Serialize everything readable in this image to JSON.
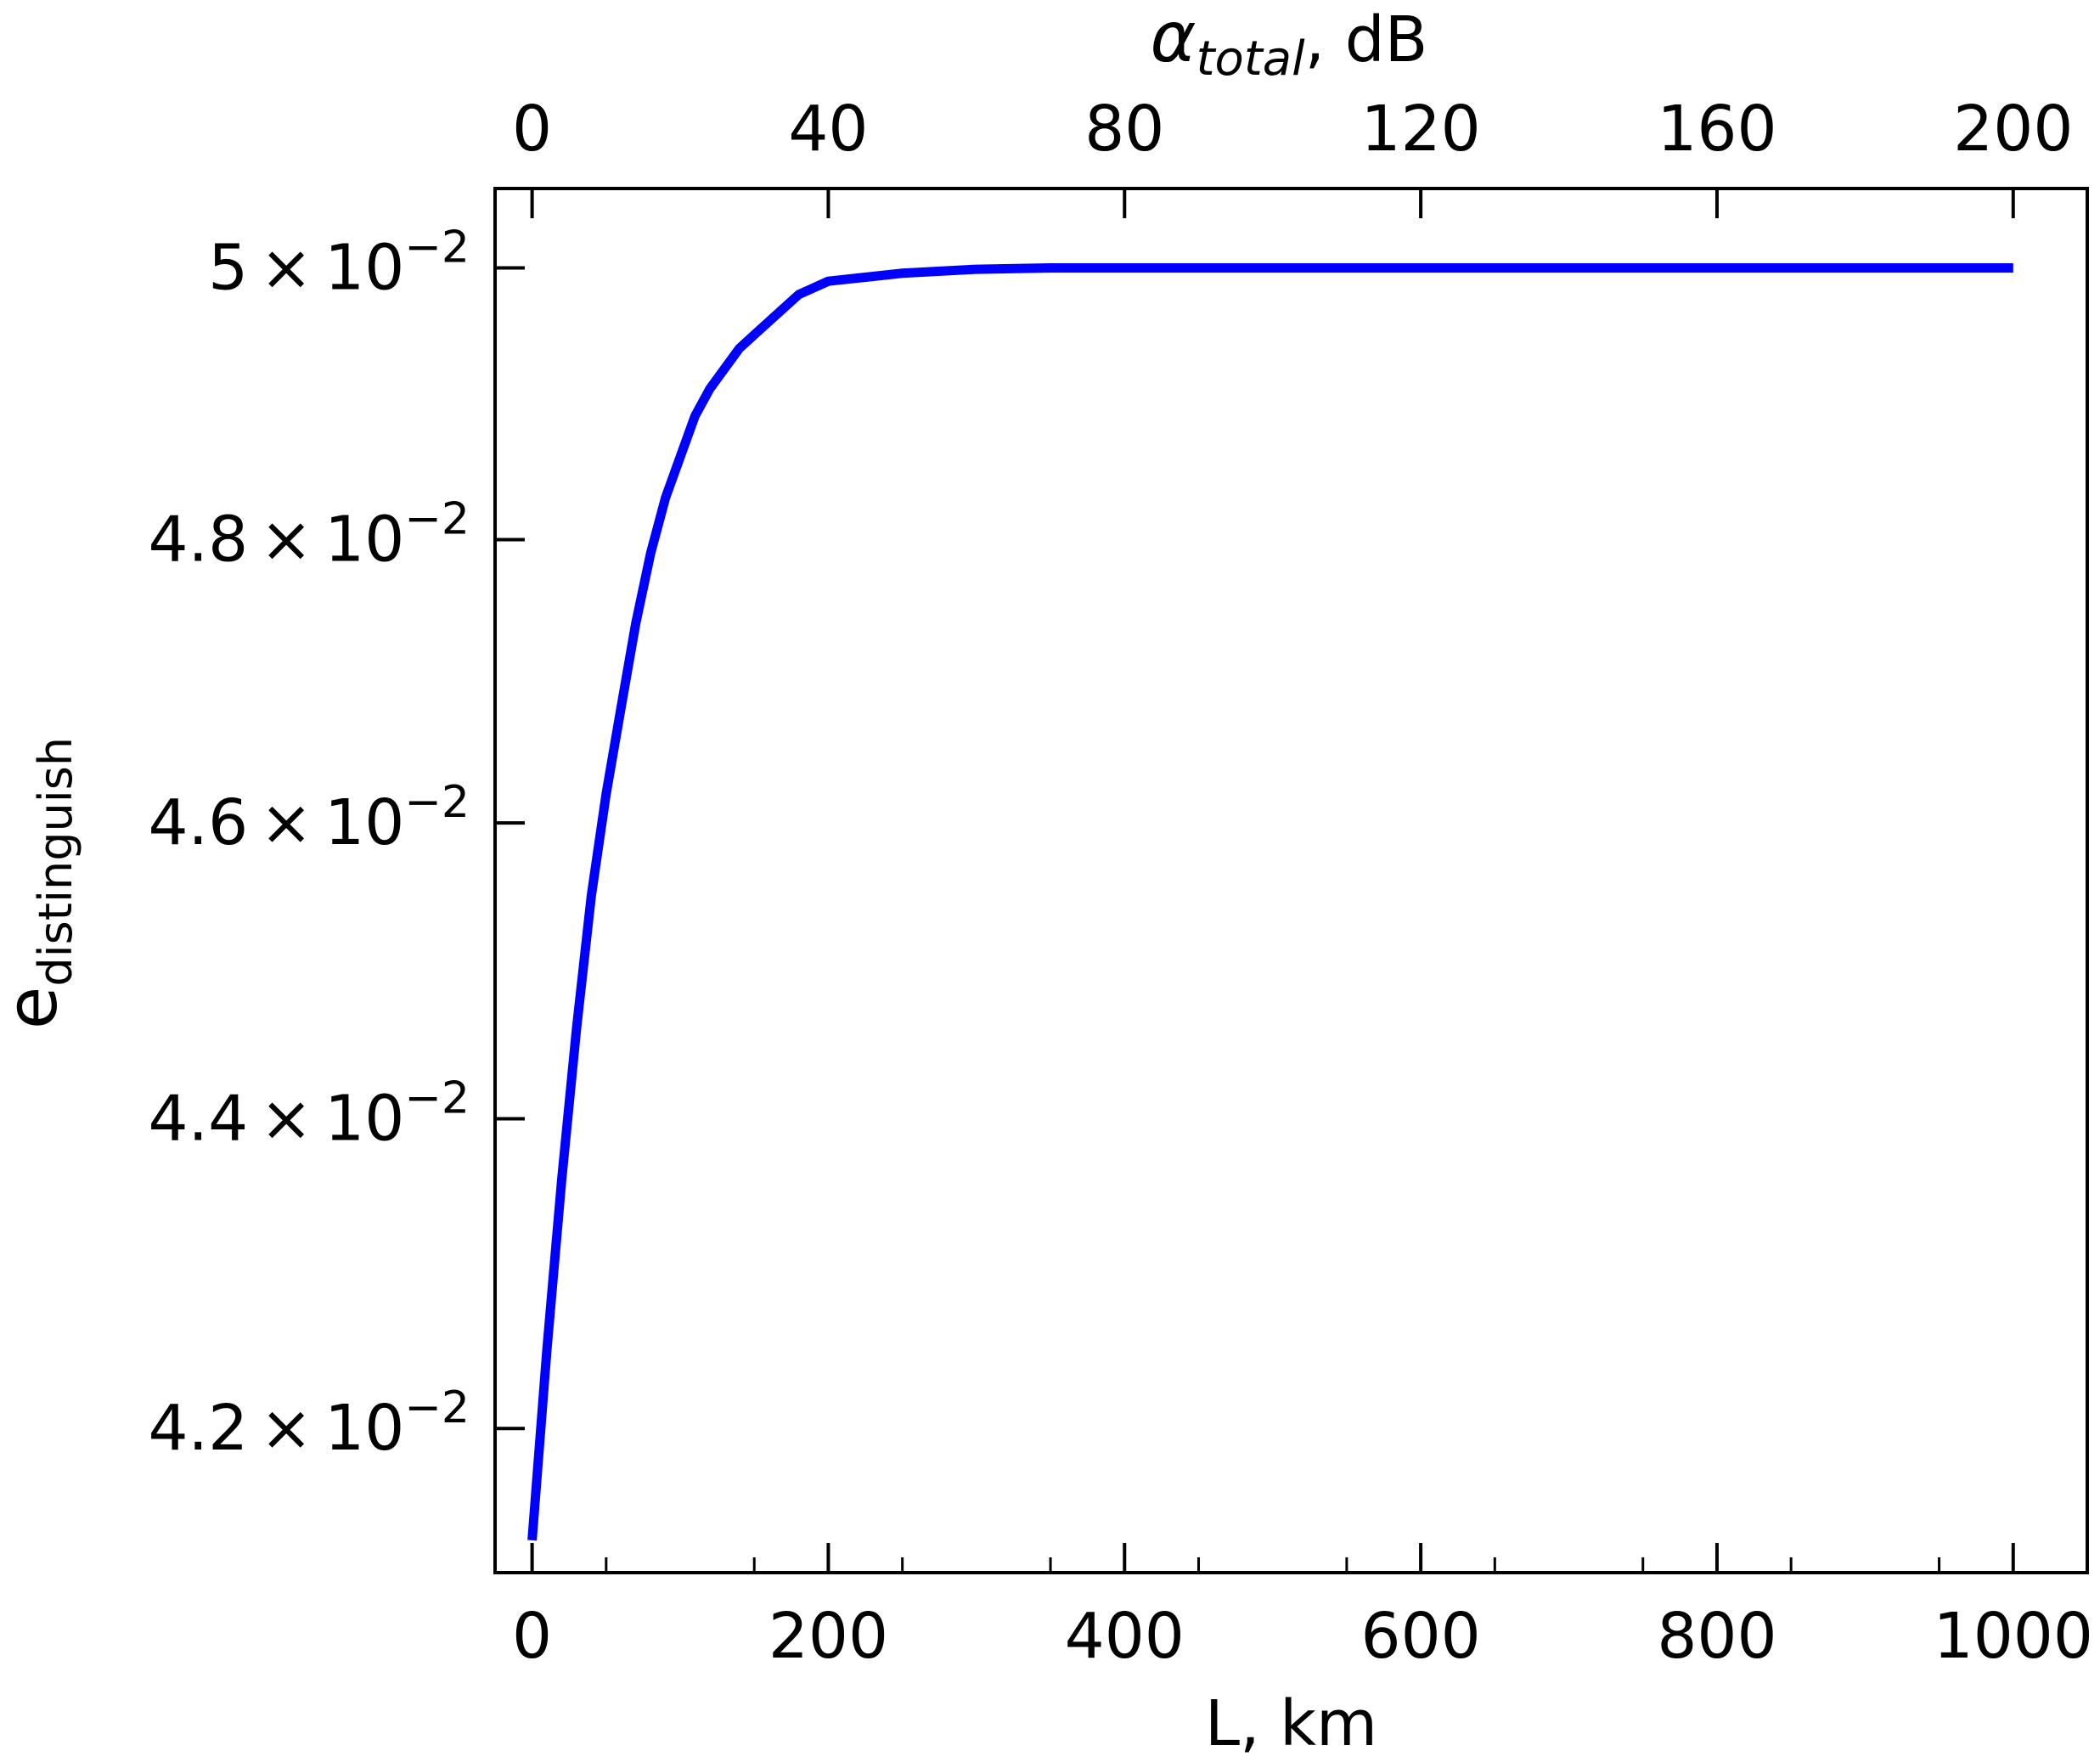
{
  "chart_data": {
    "type": "line",
    "xlabel": "L, km",
    "ylabel": {
      "base": "e",
      "subscript": "distinguish"
    },
    "top_xlabel": {
      "base": "α",
      "subscript": "total",
      "suffix": ", dB"
    },
    "xlim": [
      -25,
      1050
    ],
    "top_xlim": [
      -5,
      210
    ],
    "ylim": [
      0.0411,
      0.0506
    ],
    "y_scale": "log",
    "grid": false,
    "x_ticks": [
      0,
      200,
      400,
      600,
      800,
      1000
    ],
    "top_x_ticks": [
      0,
      40,
      80,
      120,
      160,
      200
    ],
    "y_ticks": [
      {
        "value": 0.042,
        "mantissa": "4.2",
        "times": "×",
        "base": "10",
        "exponent": "−2"
      },
      {
        "value": 0.044,
        "mantissa": "4.4",
        "times": "×",
        "base": "10",
        "exponent": "−2"
      },
      {
        "value": 0.046,
        "mantissa": "4.6",
        "times": "×",
        "base": "10",
        "exponent": "−2"
      },
      {
        "value": 0.048,
        "mantissa": "4.8",
        "times": "×",
        "base": "10",
        "exponent": "−2"
      },
      {
        "value": 0.05,
        "mantissa": "5",
        "times": "×",
        "base": "10",
        "exponent": "−2"
      }
    ],
    "series": [
      {
        "color": "#0000ff",
        "x": [
          0,
          10,
          20,
          30,
          40,
          50,
          60,
          70,
          80,
          90,
          100,
          110,
          120,
          140,
          160,
          180,
          200,
          225,
          250,
          300,
          350,
          400,
          500,
          600,
          700,
          800,
          900,
          1000
        ],
        "y": [
          0.0413,
          0.0425,
          0.0436,
          0.0446,
          0.0455,
          0.0462,
          0.0468,
          0.0474,
          0.0479,
          0.0483,
          0.0486,
          0.0489,
          0.0491,
          0.0494,
          0.0496,
          0.0498,
          0.0499,
          0.04993,
          0.04996,
          0.04999,
          0.05,
          0.05,
          0.05,
          0.05,
          0.05,
          0.05,
          0.05,
          0.05
        ]
      }
    ]
  }
}
